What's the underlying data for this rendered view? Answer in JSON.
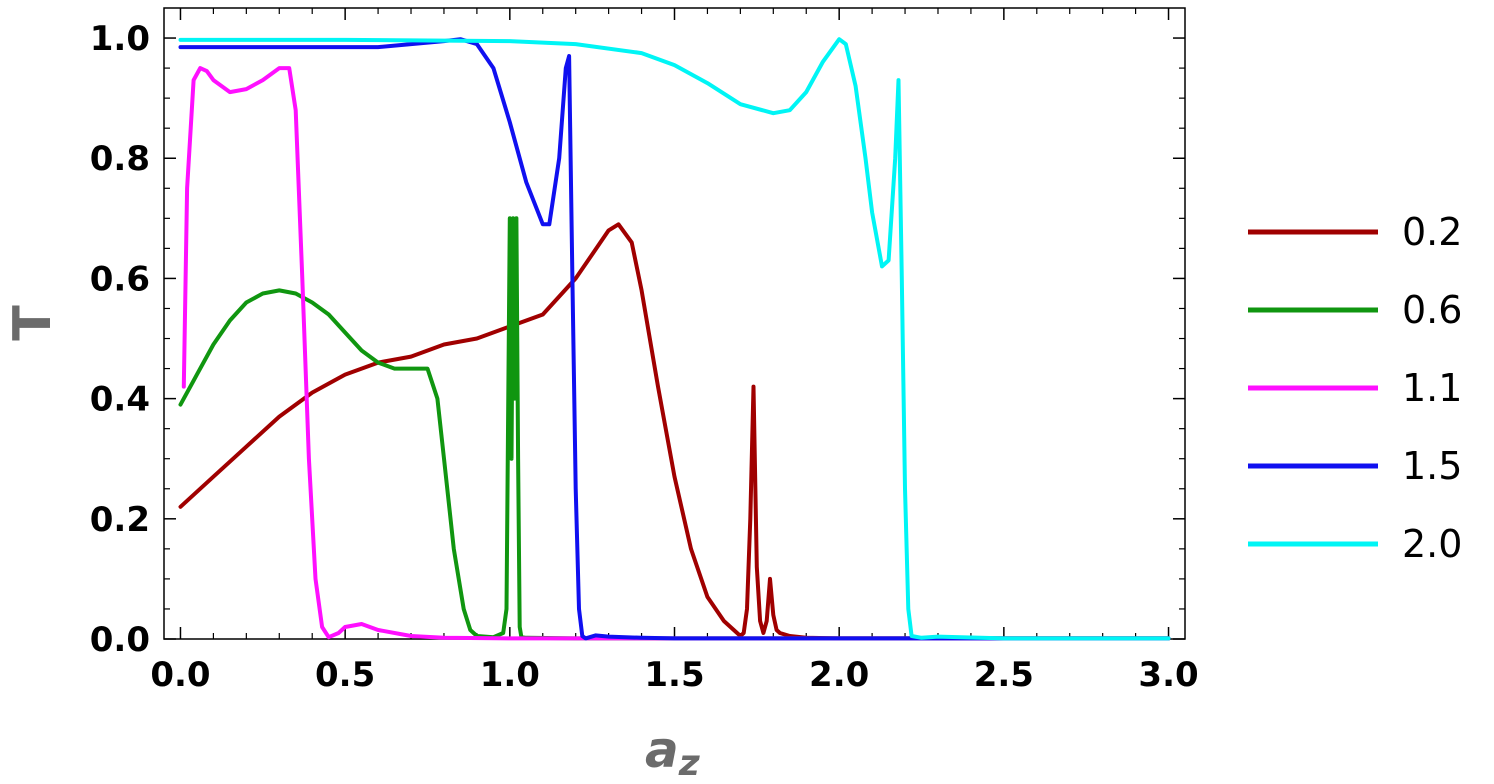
{
  "chart_data": {
    "type": "line",
    "xlabel_main": "a",
    "xlabel_sub": "z",
    "ylabel": "T",
    "xlim": [
      -0.05,
      3.05
    ],
    "ylim": [
      0,
      1.05
    ],
    "xticks": [
      0.0,
      0.5,
      1.0,
      1.5,
      2.0,
      2.5,
      3.0
    ],
    "xtick_labels": [
      "0.0",
      "0.5",
      "1.0",
      "1.5",
      "2.0",
      "2.5",
      "3.0"
    ],
    "yticks": [
      0.0,
      0.2,
      0.4,
      0.6,
      0.8,
      1.0
    ],
    "ytick_labels": [
      "0.0",
      "0.2",
      "0.4",
      "0.6",
      "0.8",
      "1.0"
    ],
    "grid": false,
    "legend_position": "right",
    "series": [
      {
        "name": "0.2",
        "color": "#a00000",
        "x": [
          0,
          0.1,
          0.2,
          0.3,
          0.4,
          0.5,
          0.6,
          0.7,
          0.8,
          0.9,
          1.0,
          1.1,
          1.15,
          1.2,
          1.25,
          1.3,
          1.33,
          1.37,
          1.4,
          1.45,
          1.5,
          1.55,
          1.6,
          1.65,
          1.7,
          1.71,
          1.72,
          1.73,
          1.74,
          1.75,
          1.76,
          1.77,
          1.78,
          1.79,
          1.8,
          1.81,
          1.82,
          1.85,
          1.9,
          2.0,
          2.5,
          3.0
        ],
        "y": [
          0.22,
          0.27,
          0.32,
          0.37,
          0.41,
          0.44,
          0.46,
          0.47,
          0.49,
          0.5,
          0.52,
          0.54,
          0.57,
          0.6,
          0.64,
          0.68,
          0.69,
          0.66,
          0.58,
          0.42,
          0.27,
          0.15,
          0.07,
          0.03,
          0.005,
          0.01,
          0.05,
          0.2,
          0.42,
          0.12,
          0.03,
          0.01,
          0.03,
          0.1,
          0.04,
          0.015,
          0.01,
          0.005,
          0.002,
          0.001,
          0.001,
          0.001
        ]
      },
      {
        "name": "0.6",
        "color": "#109610",
        "x": [
          0,
          0.05,
          0.1,
          0.15,
          0.2,
          0.25,
          0.3,
          0.35,
          0.4,
          0.45,
          0.5,
          0.55,
          0.6,
          0.65,
          0.7,
          0.75,
          0.78,
          0.8,
          0.83,
          0.86,
          0.88,
          0.9,
          0.95,
          0.98,
          0.99,
          1.0,
          1.005,
          1.01,
          1.015,
          1.02,
          1.025,
          1.03,
          1.035,
          1.05,
          1.2,
          1.5,
          3.0
        ],
        "y": [
          0.39,
          0.44,
          0.49,
          0.53,
          0.56,
          0.575,
          0.58,
          0.575,
          0.56,
          0.54,
          0.51,
          0.48,
          0.46,
          0.45,
          0.45,
          0.45,
          0.4,
          0.3,
          0.15,
          0.05,
          0.015,
          0.005,
          0.003,
          0.01,
          0.05,
          0.7,
          0.3,
          0.7,
          0.4,
          0.7,
          0.3,
          0.02,
          0.003,
          0.002,
          0.001,
          0.001,
          0.001
        ]
      },
      {
        "name": "1.1",
        "color": "#ff10ff",
        "x": [
          0.01,
          0.02,
          0.04,
          0.06,
          0.08,
          0.1,
          0.15,
          0.2,
          0.25,
          0.3,
          0.33,
          0.35,
          0.37,
          0.39,
          0.41,
          0.43,
          0.45,
          0.48,
          0.5,
          0.55,
          0.6,
          0.7,
          0.8,
          1.0,
          1.5,
          3.0
        ],
        "y": [
          0.42,
          0.75,
          0.93,
          0.95,
          0.945,
          0.93,
          0.91,
          0.915,
          0.93,
          0.95,
          0.95,
          0.88,
          0.6,
          0.3,
          0.1,
          0.02,
          0.003,
          0.01,
          0.02,
          0.025,
          0.015,
          0.005,
          0.002,
          0.001,
          0.001,
          0.001
        ]
      },
      {
        "name": "1.5",
        "color": "#1010f0",
        "x": [
          0,
          0.2,
          0.4,
          0.6,
          0.7,
          0.8,
          0.85,
          0.9,
          0.95,
          1.0,
          1.05,
          1.1,
          1.12,
          1.15,
          1.17,
          1.18,
          1.19,
          1.2,
          1.21,
          1.22,
          1.23,
          1.26,
          1.3,
          1.4,
          1.5,
          2.0,
          3.0
        ],
        "y": [
          0.985,
          0.985,
          0.985,
          0.985,
          0.99,
          0.995,
          0.998,
          0.99,
          0.95,
          0.86,
          0.76,
          0.69,
          0.69,
          0.8,
          0.95,
          0.97,
          0.6,
          0.25,
          0.05,
          0.005,
          0.001,
          0.006,
          0.004,
          0.002,
          0.001,
          0.001,
          0.001
        ]
      },
      {
        "name": "2.0",
        "color": "#00f5f5",
        "x": [
          0,
          0.5,
          1.0,
          1.2,
          1.4,
          1.5,
          1.6,
          1.7,
          1.8,
          1.85,
          1.9,
          1.95,
          2.0,
          2.02,
          2.05,
          2.08,
          2.1,
          2.13,
          2.15,
          2.17,
          2.18,
          2.19,
          2.2,
          2.21,
          2.22,
          2.25,
          2.3,
          2.5,
          3.0
        ],
        "y": [
          0.997,
          0.997,
          0.995,
          0.99,
          0.975,
          0.955,
          0.925,
          0.89,
          0.875,
          0.88,
          0.91,
          0.96,
          0.998,
          0.99,
          0.92,
          0.8,
          0.71,
          0.62,
          0.63,
          0.8,
          0.93,
          0.6,
          0.25,
          0.05,
          0.005,
          0.002,
          0.004,
          0.001,
          0.001
        ]
      }
    ]
  }
}
